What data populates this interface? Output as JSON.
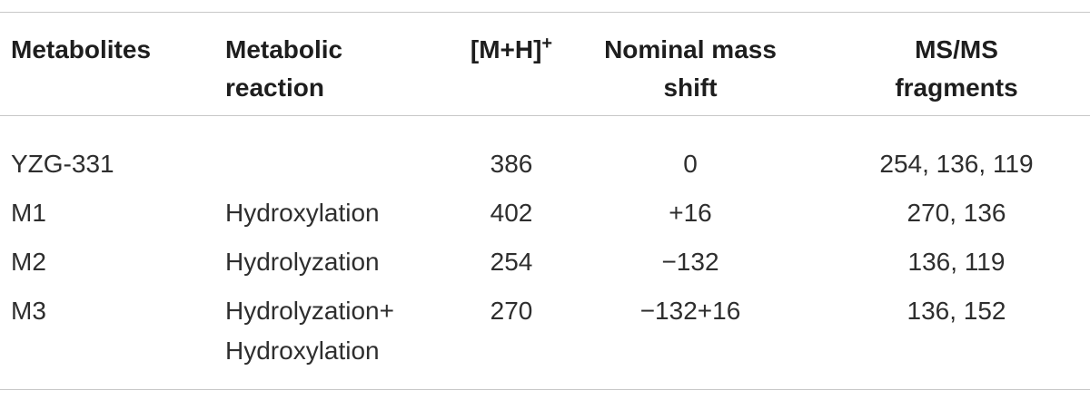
{
  "table": {
    "header": [
      {
        "lines": [
          "Metabolites"
        ]
      },
      {
        "lines": [
          "Metabolic",
          "reaction"
        ]
      },
      {
        "lines": [
          "[M+H]"
        ],
        "sup": "+"
      },
      {
        "lines": [
          "Nominal mass",
          "shift"
        ]
      },
      {
        "lines": [
          "MS/MS",
          "fragments"
        ]
      }
    ],
    "rows": [
      [
        [
          "YZG-331"
        ],
        [],
        [
          "386"
        ],
        [
          "0"
        ],
        [
          "254, 136, 119"
        ]
      ],
      [
        [
          "M1"
        ],
        [
          "Hydroxylation"
        ],
        [
          "402"
        ],
        [
          "+16"
        ],
        [
          "270, 136"
        ]
      ],
      [
        [
          "M2"
        ],
        [
          "Hydrolyzation"
        ],
        [
          "254"
        ],
        [
          "−132"
        ],
        [
          "136, 119"
        ]
      ],
      [
        [
          "M3"
        ],
        [
          "Hydrolyzation+",
          "Hydroxylation"
        ],
        [
          "270"
        ],
        [
          "−132+16"
        ],
        [
          "136, 152"
        ]
      ]
    ]
  }
}
